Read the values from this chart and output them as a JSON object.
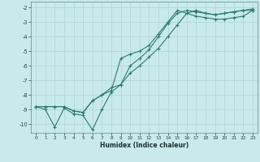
{
  "xlabel": "Humidex (Indice chaleur)",
  "bg_color": "#c8eaea",
  "grid_color": "#b0d4d4",
  "line_color": "#2e7d6e",
  "xlim": [
    -0.5,
    23.5
  ],
  "ylim": [
    -10.6,
    -1.6
  ],
  "xticks": [
    0,
    1,
    2,
    3,
    4,
    5,
    6,
    7,
    8,
    9,
    10,
    11,
    12,
    13,
    14,
    15,
    16,
    17,
    18,
    19,
    20,
    21,
    22,
    23
  ],
  "yticks": [
    -10,
    -9,
    -8,
    -7,
    -6,
    -5,
    -4,
    -3,
    -2
  ],
  "line1_x": [
    0,
    1,
    2,
    3,
    4,
    5,
    6,
    7,
    8,
    9,
    10,
    11,
    12,
    13,
    14,
    15,
    16,
    17,
    18,
    19,
    20,
    21,
    22,
    23
  ],
  "line1_y": [
    -8.8,
    -9.0,
    -10.2,
    -8.9,
    -9.3,
    -9.4,
    -10.4,
    -9.0,
    -7.8,
    -7.3,
    -6.0,
    -5.5,
    -4.9,
    -4.0,
    -3.1,
    -2.4,
    -2.2,
    -2.3,
    -2.4,
    -2.5,
    -2.4,
    -2.3,
    -2.2,
    -2.2
  ],
  "line2_x": [
    0,
    1,
    2,
    3,
    4,
    5,
    6,
    7,
    8,
    9,
    10,
    11,
    12,
    13,
    14,
    15,
    16,
    17,
    18,
    19,
    20,
    21,
    22,
    23
  ],
  "line2_y": [
    -8.8,
    -8.8,
    -8.8,
    -8.8,
    -9.1,
    -9.2,
    -8.4,
    -8.0,
    -7.5,
    -7.3,
    -6.5,
    -6.0,
    -5.4,
    -4.8,
    -4.0,
    -3.2,
    -2.4,
    -2.2,
    -2.4,
    -2.5,
    -2.4,
    -2.3,
    -2.2,
    -2.1
  ],
  "line3_x": [
    0,
    1,
    2,
    3,
    4,
    5,
    6,
    7,
    8,
    9,
    10,
    11,
    12,
    13,
    14,
    15,
    16,
    17,
    18,
    19,
    20,
    21,
    22,
    23
  ],
  "line3_y": [
    -8.8,
    -8.8,
    -8.8,
    -8.8,
    -9.1,
    -9.2,
    -8.4,
    -8.0,
    -7.7,
    -5.5,
    -5.2,
    -5.0,
    -4.6,
    -3.8,
    -3.0,
    -2.2,
    -2.4,
    -2.6,
    -2.7,
    -2.8,
    -2.8,
    -2.7,
    -2.6,
    -2.2
  ]
}
